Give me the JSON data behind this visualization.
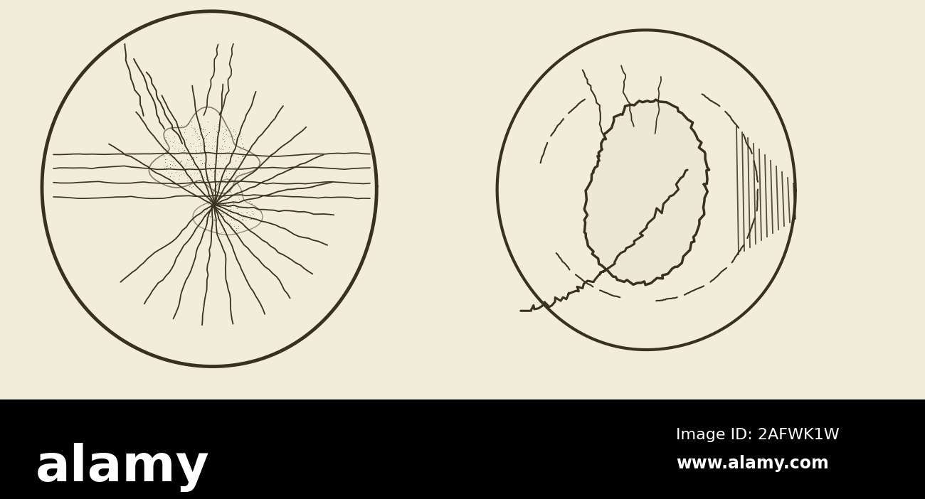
{
  "bg_color": "#f2edd8",
  "watermark_color": "#000000",
  "circle_color": "#3a3020",
  "line_color": "#3a3520",
  "alamy_text": "alamy",
  "image_id_text": "Image ID: 2AFWK1W",
  "website_text": "www.alamy.com",
  "fig_w": 13.0,
  "fig_h": 7.02,
  "dpi": 100
}
